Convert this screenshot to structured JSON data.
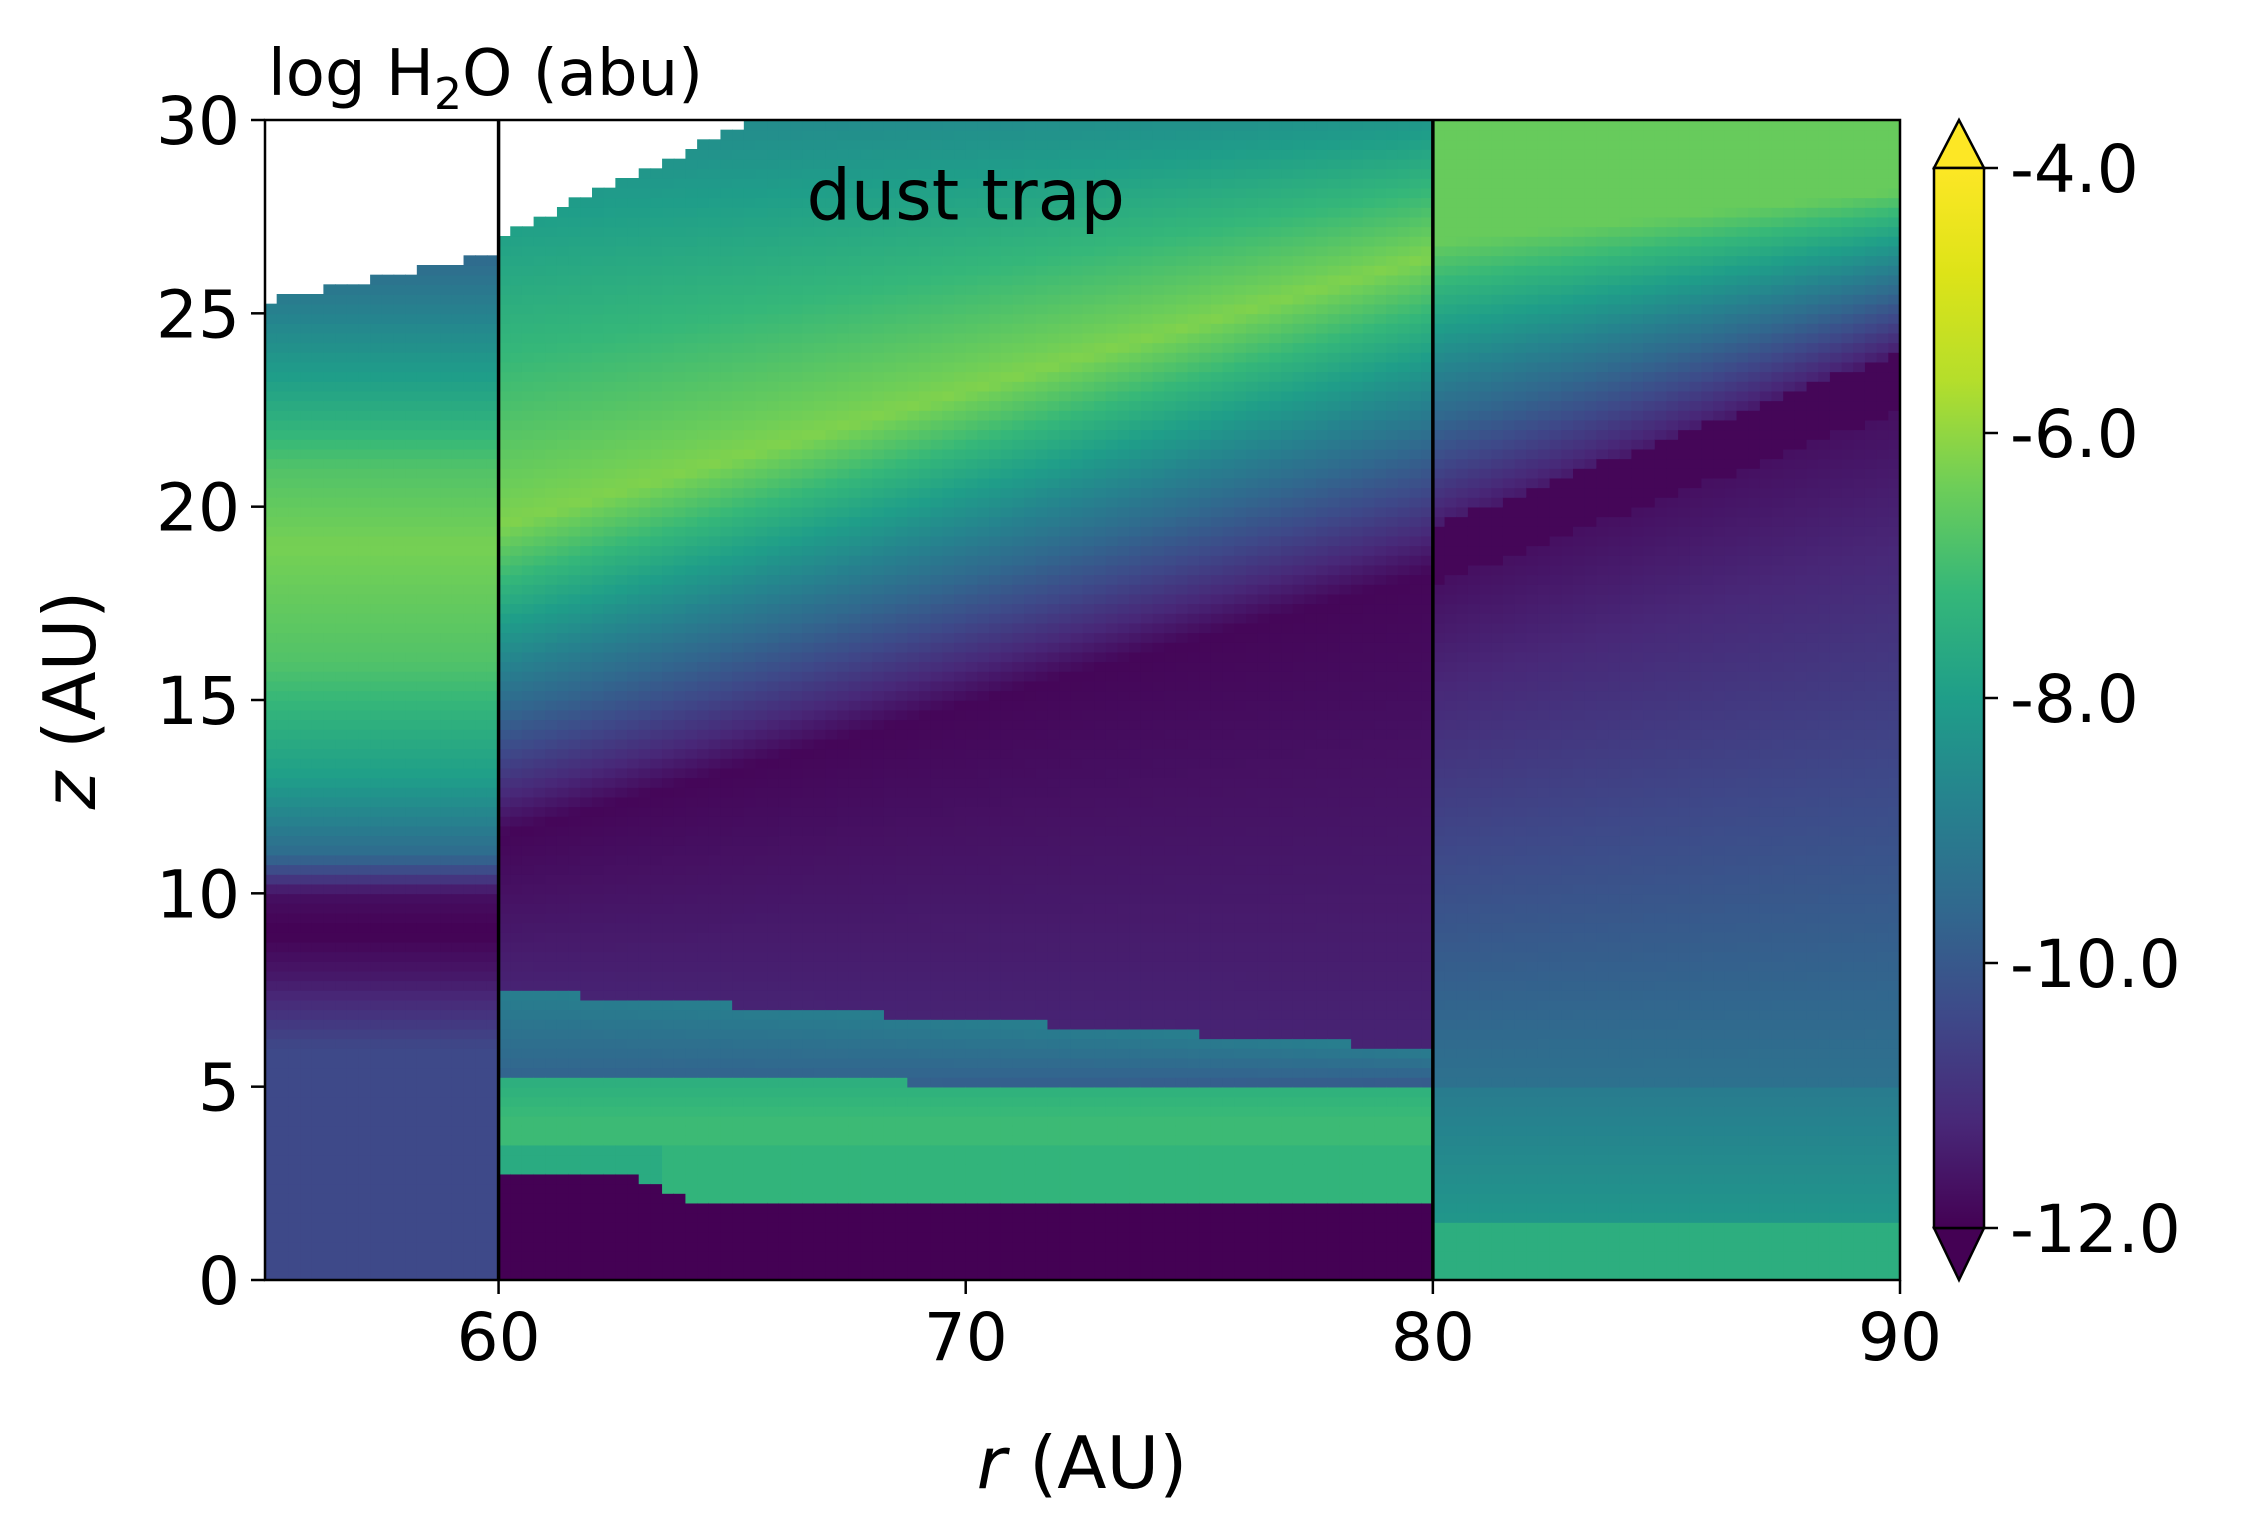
{
  "chart_data": {
    "type": "heatmap",
    "title_prefix": "log H",
    "title_sub": "2",
    "title_suffix": "O (abu)",
    "xlabel_var": "r",
    "xlabel_unit": " (AU)",
    "ylabel_var": "z",
    "ylabel_unit": " (AU)",
    "xlim": [
      55,
      90
    ],
    "ylim": [
      0,
      30
    ],
    "x_ticks": [
      60,
      70,
      80,
      90
    ],
    "y_ticks": [
      0,
      5,
      10,
      15,
      20,
      25,
      30
    ],
    "colorbar": {
      "cmap": "viridis",
      "range": [
        -12.0,
        -4.0
      ],
      "extend": "both",
      "ticks": [
        -12.0,
        -10.0,
        -8.0,
        -6.0,
        -4.0
      ],
      "tick_labels": [
        "-12.0",
        "-10.0",
        "-8.0",
        "-6.0",
        "-4.0"
      ]
    },
    "vertical_lines_r": [
      60,
      80
    ],
    "annotation": {
      "text": "dust trap",
      "r": 70,
      "z": 28
    },
    "colors": {
      "annotation_text": "#ffffff",
      "line": "#000000"
    },
    "regions": [
      {
        "name": "inner",
        "r_range": [
          55,
          60
        ],
        "z_top": [
          25.3,
          26.6
        ],
        "profile": [
          [
            0,
            -10.4
          ],
          [
            6,
            -10.4
          ],
          [
            7.8,
            -11.5
          ],
          [
            9,
            -12
          ],
          [
            10,
            -11.7
          ],
          [
            11,
            -9.5
          ],
          [
            13,
            -8
          ],
          [
            16,
            -6.8
          ],
          [
            19,
            -6.3
          ],
          [
            21,
            -6.8
          ],
          [
            23,
            -7.8
          ],
          [
            25,
            -8.8
          ],
          [
            26.6,
            -9.6
          ]
        ]
      },
      {
        "name": "trap",
        "r_range": [
          60,
          80
        ],
        "z_top": [
          27,
          30
        ]
      },
      {
        "name": "outer",
        "r_range": [
          80,
          90
        ],
        "z_top": [
          30,
          30
        ]
      }
    ]
  }
}
